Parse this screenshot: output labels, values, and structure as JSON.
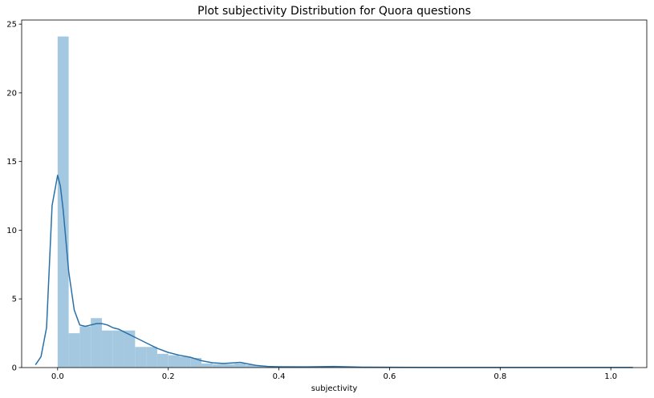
{
  "chart_data": {
    "type": "bar",
    "title": "Plot subjectivity Distribution for Quora questions",
    "xlabel": "subjectivity",
    "ylabel": "",
    "xlim": [
      -0.065,
      1.065
    ],
    "ylim": [
      0,
      25.3
    ],
    "xticks": [
      0.0,
      0.2,
      0.4,
      0.6,
      0.8,
      1.0
    ],
    "xtick_labels": [
      "0.0",
      "0.2",
      "0.4",
      "0.6",
      "0.8",
      "1.0"
    ],
    "yticks": [
      0,
      5,
      10,
      15,
      20,
      25
    ],
    "ytick_labels": [
      "0",
      "5",
      "10",
      "15",
      "20",
      "25"
    ],
    "grid": false,
    "colors": {
      "bar": "#a4c8e0",
      "kde_line": "#2a70a8",
      "axis": "#000000",
      "background": "#ffffff"
    },
    "histogram": {
      "bin_edges": [
        0.0,
        0.02,
        0.04,
        0.06,
        0.08,
        0.1,
        0.12,
        0.14,
        0.16,
        0.18,
        0.2,
        0.22,
        0.24,
        0.26,
        0.28,
        0.3,
        0.32,
        0.34,
        0.36,
        0.38,
        0.4,
        0.42,
        0.44,
        0.46,
        0.48,
        0.5
      ],
      "densities": [
        24.1,
        2.5,
        3.0,
        3.6,
        2.7,
        2.7,
        2.7,
        1.5,
        1.5,
        1.0,
        0.9,
        0.8,
        0.7,
        0.3,
        0.25,
        0.25,
        0.3,
        0.2,
        0.12,
        0.1,
        0.08,
        0.06,
        0.05,
        0.05,
        0.05
      ]
    },
    "kde": {
      "x": [
        -0.04,
        -0.03,
        -0.02,
        -0.01,
        0.0,
        0.005,
        0.01,
        0.02,
        0.03,
        0.04,
        0.05,
        0.06,
        0.07,
        0.08,
        0.09,
        0.1,
        0.11,
        0.12,
        0.13,
        0.14,
        0.16,
        0.18,
        0.2,
        0.22,
        0.24,
        0.26,
        0.28,
        0.3,
        0.32,
        0.33,
        0.34,
        0.36,
        0.38,
        0.4,
        0.45,
        0.5,
        0.55,
        0.6,
        0.7,
        0.8,
        0.9,
        1.0,
        1.04
      ],
      "y": [
        0.2,
        0.8,
        2.9,
        11.8,
        14.0,
        13.2,
        11.5,
        7.0,
        4.2,
        3.1,
        3.0,
        3.1,
        3.2,
        3.2,
        3.1,
        2.9,
        2.8,
        2.6,
        2.4,
        2.2,
        1.8,
        1.4,
        1.1,
        0.9,
        0.75,
        0.5,
        0.35,
        0.3,
        0.35,
        0.38,
        0.3,
        0.15,
        0.08,
        0.06,
        0.05,
        0.08,
        0.03,
        0.02,
        0.01,
        0.01,
        0.01,
        0.01,
        0.01
      ]
    }
  }
}
